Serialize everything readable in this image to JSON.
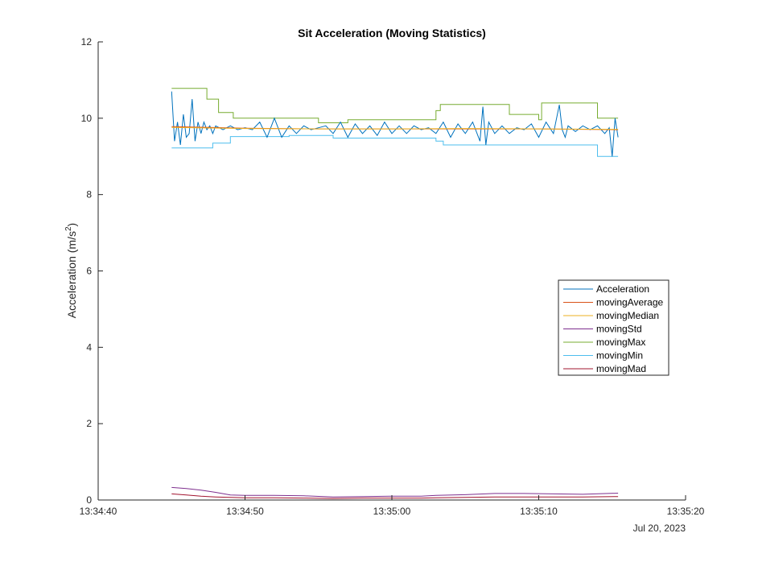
{
  "chart_data": {
    "type": "line",
    "title": "Sit Acceleration (Moving Statistics)",
    "ylabel": "Acceleration (m/s",
    "ylabel_sup": "2",
    "ylabel_close": ")",
    "xlabel": "",
    "ylim": [
      0,
      12
    ],
    "yticks": [
      0,
      2,
      4,
      6,
      8,
      10,
      12
    ],
    "xlim": [
      "13:34:40",
      "13:35:20"
    ],
    "xticks": [
      "13:34:40",
      "13:34:50",
      "13:35:00",
      "13:35:10",
      "13:35:20"
    ],
    "x_date_label": "Jul 20, 2023",
    "legend_position": "east",
    "series": [
      {
        "name": "Acceleration",
        "color": "#0072BD",
        "x": [
          "13:34:45.0",
          "13:34:45.2",
          "13:34:45.4",
          "13:34:45.6",
          "13:34:45.8",
          "13:34:46.0",
          "13:34:46.2",
          "13:34:46.4",
          "13:34:46.6",
          "13:34:46.8",
          "13:34:47.0",
          "13:34:47.2",
          "13:34:47.4",
          "13:34:47.6",
          "13:34:47.8",
          "13:34:48.0",
          "13:34:48.5",
          "13:34:49.0",
          "13:34:49.5",
          "13:34:50.0",
          "13:34:50.5",
          "13:34:51.0",
          "13:34:51.5",
          "13:34:52.0",
          "13:34:52.5",
          "13:34:53.0",
          "13:34:53.5",
          "13:34:54.0",
          "13:34:54.5",
          "13:34:55.0",
          "13:34:55.5",
          "13:34:56.0",
          "13:34:56.5",
          "13:34:57.0",
          "13:34:57.5",
          "13:34:58.0",
          "13:34:58.5",
          "13:34:59.0",
          "13:34:59.5",
          "13:35:00.0",
          "13:35:00.5",
          "13:35:01.0",
          "13:35:01.5",
          "13:35:02.0",
          "13:35:02.5",
          "13:35:03.0",
          "13:35:03.5",
          "13:35:04.0",
          "13:35:04.5",
          "13:35:05.0",
          "13:35:05.5",
          "13:35:06.0",
          "13:35:06.2",
          "13:35:06.4",
          "13:35:06.6",
          "13:35:07.0",
          "13:35:07.5",
          "13:35:08.0",
          "13:35:08.5",
          "13:35:09.0",
          "13:35:09.5",
          "13:35:10.0",
          "13:35:10.5",
          "13:35:11.0",
          "13:35:11.4",
          "13:35:11.6",
          "13:35:11.8",
          "13:35:12.0",
          "13:35:12.5",
          "13:35:13.0",
          "13:35:13.5",
          "13:35:14.0",
          "13:35:14.5",
          "13:35:14.8",
          "13:35:15.0",
          "13:35:15.2",
          "13:35:15.4"
        ],
        "values": [
          10.7,
          9.4,
          9.9,
          9.3,
          10.1,
          9.5,
          9.6,
          10.5,
          9.4,
          9.9,
          9.6,
          9.9,
          9.7,
          9.8,
          9.6,
          9.8,
          9.7,
          9.8,
          9.7,
          9.75,
          9.7,
          9.9,
          9.5,
          10.0,
          9.5,
          9.8,
          9.6,
          9.8,
          9.7,
          9.75,
          9.8,
          9.6,
          9.9,
          9.5,
          9.85,
          9.6,
          9.8,
          9.55,
          9.9,
          9.6,
          9.8,
          9.6,
          9.8,
          9.7,
          9.75,
          9.6,
          9.9,
          9.5,
          9.85,
          9.6,
          9.9,
          9.4,
          10.3,
          9.3,
          9.9,
          9.6,
          9.8,
          9.6,
          9.75,
          9.7,
          9.85,
          9.5,
          9.9,
          9.6,
          10.35,
          9.7,
          9.5,
          9.8,
          9.65,
          9.8,
          9.7,
          9.8,
          9.6,
          9.75,
          9.0,
          10.0,
          9.5
        ]
      },
      {
        "name": "movingAverage",
        "color": "#D95319",
        "x": [
          "13:34:45.0",
          "13:34:50.0",
          "13:34:55.0",
          "13:35:00.0",
          "13:35:05.0",
          "13:35:10.0",
          "13:35:15.4"
        ],
        "values": [
          9.78,
          9.74,
          9.72,
          9.72,
          9.72,
          9.72,
          9.7
        ]
      },
      {
        "name": "movingMedian",
        "color": "#EDB120",
        "x": [
          "13:34:45.0",
          "13:34:50.0",
          "13:34:55.0",
          "13:35:00.0",
          "13:35:05.0",
          "13:35:10.0",
          "13:35:15.4"
        ],
        "values": [
          9.76,
          9.73,
          9.72,
          9.72,
          9.73,
          9.72,
          9.71
        ]
      },
      {
        "name": "movingStd",
        "color": "#7E2F8E",
        "x": [
          "13:34:45.0",
          "13:34:46.0",
          "13:34:47.0",
          "13:34:48.0",
          "13:34:49.0",
          "13:34:50.0",
          "13:34:52.0",
          "13:34:54.0",
          "13:34:56.0",
          "13:34:58.0",
          "13:35:00.0",
          "13:35:02.0",
          "13:35:03.0",
          "13:35:05.0",
          "13:35:07.0",
          "13:35:09.0",
          "13:35:11.0",
          "13:35:13.0",
          "13:35:15.4"
        ],
        "values": [
          0.33,
          0.3,
          0.26,
          0.2,
          0.13,
          0.12,
          0.12,
          0.11,
          0.08,
          0.09,
          0.1,
          0.1,
          0.12,
          0.14,
          0.17,
          0.17,
          0.16,
          0.15,
          0.18
        ]
      },
      {
        "name": "movingMax",
        "color": "#77AC30",
        "x": [
          "13:34:45.0",
          "13:34:47.4",
          "13:34:47.4",
          "13:34:48.2",
          "13:34:48.2",
          "13:34:49.2",
          "13:34:49.2",
          "13:34:55.0",
          "13:34:55.0",
          "13:34:57.0",
          "13:34:57.0",
          "13:35:03.0",
          "13:35:03.0",
          "13:35:03.3",
          "13:35:03.3",
          "13:35:08.0",
          "13:35:08.0",
          "13:35:10.0",
          "13:35:10.0",
          "13:35:10.2",
          "13:35:10.2",
          "13:35:14.0",
          "13:35:14.0",
          "13:35:15.4"
        ],
        "values": [
          10.78,
          10.78,
          10.5,
          10.5,
          10.15,
          10.15,
          10.0,
          10.0,
          9.88,
          9.88,
          9.96,
          9.96,
          10.2,
          10.2,
          10.36,
          10.36,
          10.1,
          10.1,
          9.96,
          9.96,
          10.4,
          10.4,
          10.0,
          10.0
        ]
      },
      {
        "name": "movingMin",
        "color": "#4DBEEE",
        "x": [
          "13:34:45.0",
          "13:34:47.8",
          "13:34:47.8",
          "13:34:49.0",
          "13:34:49.0",
          "13:34:53.0",
          "13:34:53.0",
          "13:34:56.0",
          "13:34:56.0",
          "13:35:03.0",
          "13:35:03.0",
          "13:35:03.5",
          "13:35:03.5",
          "13:35:14.0",
          "13:35:14.0",
          "13:35:15.4"
        ],
        "values": [
          9.22,
          9.22,
          9.35,
          9.35,
          9.52,
          9.52,
          9.55,
          9.55,
          9.48,
          9.48,
          9.4,
          9.4,
          9.3,
          9.3,
          9.0,
          9.0
        ]
      },
      {
        "name": "movingMad",
        "color": "#A2142F",
        "x": [
          "13:34:45.0",
          "13:34:46.0",
          "13:34:47.0",
          "13:34:48.0",
          "13:34:50.0",
          "13:34:52.0",
          "13:34:54.0",
          "13:34:56.0",
          "13:34:58.0",
          "13:35:00.0",
          "13:35:02.0",
          "13:35:03.0",
          "13:35:05.0",
          "13:35:07.0",
          "13:35:09.0",
          "13:35:11.0",
          "13:35:13.0",
          "13:35:15.4"
        ],
        "values": [
          0.16,
          0.13,
          0.1,
          0.08,
          0.06,
          0.06,
          0.05,
          0.04,
          0.05,
          0.05,
          0.05,
          0.06,
          0.07,
          0.08,
          0.08,
          0.08,
          0.08,
          0.09
        ]
      }
    ]
  }
}
